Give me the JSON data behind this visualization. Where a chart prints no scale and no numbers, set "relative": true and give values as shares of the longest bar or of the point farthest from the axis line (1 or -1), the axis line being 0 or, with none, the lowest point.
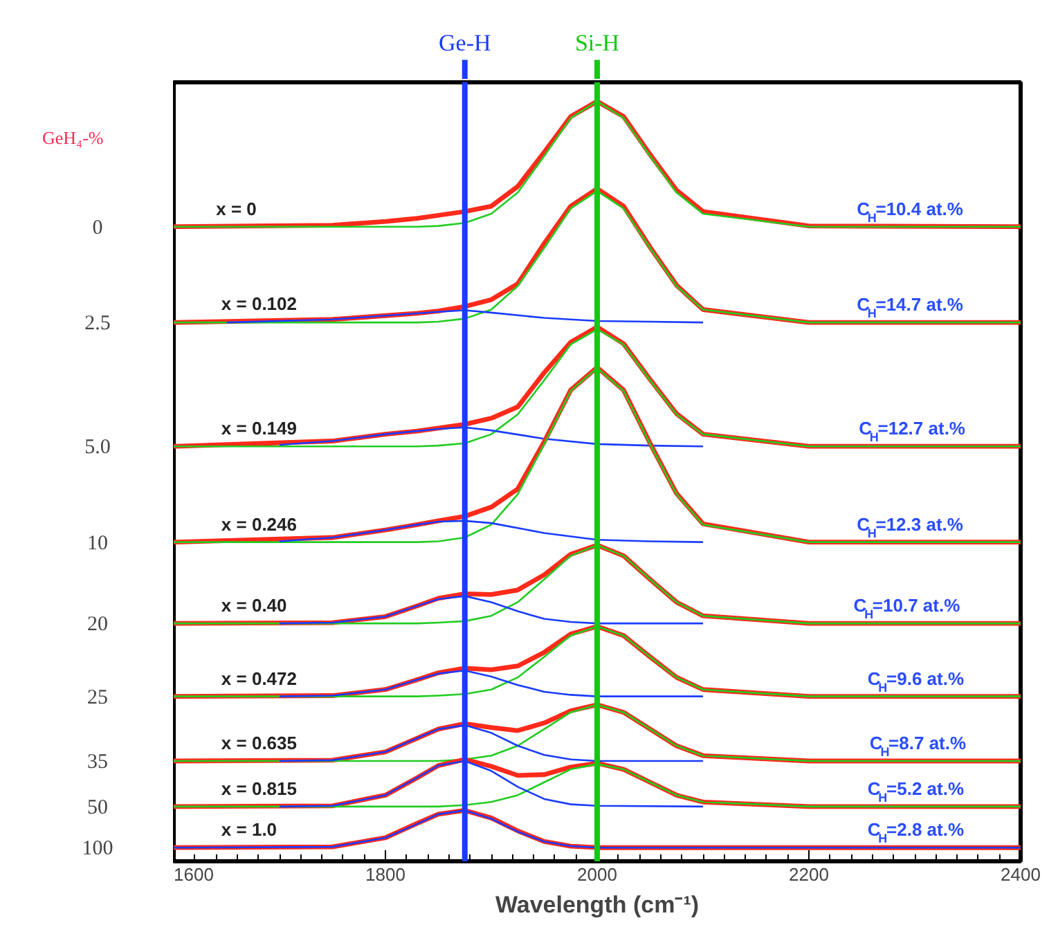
{
  "chart_data": {
    "type": "line",
    "relative": true,
    "xlabel": "Wavelength (cm⁻¹)",
    "ylabel": "GeH₄-%",
    "xlim": [
      1600,
      2400
    ],
    "xticks": [
      1600,
      1800,
      2000,
      2200,
      2400
    ],
    "grid": false,
    "tick_labels": "x",
    "marker": "none",
    "line_style": "solid",
    "x": [
      1600,
      1750,
      1800,
      1830,
      1850,
      1875,
      1900,
      1925,
      1950,
      1975,
      2000,
      2025,
      2050,
      2075,
      2100,
      2200,
      2400
    ],
    "series": [
      {
        "color": "#ff2a1a",
        "values": [
          0.835,
          0.837,
          0.842,
          0.846,
          0.85,
          0.855,
          0.862,
          0.888,
          0.933,
          0.98,
          1.0,
          0.98,
          0.93,
          0.883,
          0.855,
          0.836,
          0.835
        ]
      },
      {
        "color": "#22cc22",
        "values": [
          0.835,
          0.835,
          0.835,
          0.835,
          0.836,
          0.84,
          0.852,
          0.88,
          0.928,
          0.978,
          1.0,
          0.978,
          0.928,
          0.88,
          0.852,
          0.835,
          0.835
        ]
      },
      {
        "color": "#ff2a1a",
        "values": [
          0.709,
          0.713,
          0.718,
          0.721,
          0.724,
          0.73,
          0.739,
          0.76,
          0.813,
          0.862,
          0.885,
          0.862,
          0.808,
          0.758,
          0.726,
          0.709,
          0.709
        ]
      },
      {
        "color": "#22cc22",
        "values": [
          0.709,
          0.709,
          0.709,
          0.709,
          0.71,
          0.714,
          0.726,
          0.757,
          0.807,
          0.859,
          0.882,
          0.859,
          0.807,
          0.757,
          0.726,
          0.709,
          0.709
        ]
      },
      {
        "color": "#1a3cff",
        "x": [
          1650,
          1750,
          1800,
          1850,
          1875,
          1900,
          1950,
          2000,
          2050,
          2100
        ],
        "values": [
          0.709,
          0.713,
          0.718,
          0.723,
          0.725,
          0.722,
          0.715,
          0.711,
          0.71,
          0.709
        ]
      },
      {
        "color": "#ff2a1a",
        "values": [
          0.546,
          0.553,
          0.562,
          0.566,
          0.57,
          0.575,
          0.583,
          0.598,
          0.643,
          0.683,
          0.703,
          0.681,
          0.634,
          0.589,
          0.562,
          0.546,
          0.546
        ]
      },
      {
        "color": "#22cc22",
        "values": [
          0.546,
          0.546,
          0.546,
          0.546,
          0.547,
          0.55,
          0.562,
          0.588,
          0.633,
          0.68,
          0.7,
          0.68,
          0.633,
          0.588,
          0.562,
          0.546,
          0.546
        ]
      },
      {
        "color": "#1a3cff",
        "x": [
          1700,
          1750,
          1800,
          1850,
          1875,
          1900,
          1950,
          2000,
          2050,
          2100
        ],
        "values": [
          0.548,
          0.553,
          0.562,
          0.569,
          0.571,
          0.567,
          0.556,
          0.549,
          0.547,
          0.546
        ]
      },
      {
        "color": "#ff2a1a",
        "values": [
          0.42,
          0.426,
          0.436,
          0.443,
          0.448,
          0.454,
          0.466,
          0.49,
          0.552,
          0.62,
          0.65,
          0.62,
          0.55,
          0.484,
          0.444,
          0.42,
          0.42
        ]
      },
      {
        "color": "#22cc22",
        "values": [
          0.42,
          0.42,
          0.42,
          0.42,
          0.421,
          0.426,
          0.443,
          0.483,
          0.549,
          0.619,
          0.649,
          0.619,
          0.549,
          0.483,
          0.443,
          0.42,
          0.42
        ]
      },
      {
        "color": "#1a3cff",
        "x": [
          1700,
          1750,
          1800,
          1830,
          1850,
          1875,
          1900,
          1950,
          2000,
          2050,
          2100
        ],
        "values": [
          0.421,
          0.426,
          0.436,
          0.443,
          0.447,
          0.448,
          0.445,
          0.432,
          0.423,
          0.421,
          0.42
        ]
      },
      {
        "color": "#ff2a1a",
        "values": [
          0.313,
          0.314,
          0.322,
          0.336,
          0.346,
          0.352,
          0.351,
          0.357,
          0.377,
          0.404,
          0.416,
          0.402,
          0.371,
          0.341,
          0.323,
          0.313,
          0.313
        ]
      },
      {
        "color": "#22cc22",
        "values": [
          0.313,
          0.313,
          0.313,
          0.313,
          0.314,
          0.316,
          0.323,
          0.341,
          0.371,
          0.402,
          0.416,
          0.402,
          0.371,
          0.341,
          0.323,
          0.313,
          0.313
        ]
      },
      {
        "color": "#1a3cff",
        "x": [
          1700,
          1750,
          1800,
          1830,
          1850,
          1875,
          1900,
          1925,
          1950,
          1975,
          2000,
          2100
        ],
        "values": [
          0.313,
          0.314,
          0.322,
          0.336,
          0.345,
          0.349,
          0.341,
          0.329,
          0.319,
          0.315,
          0.313,
          0.313
        ]
      },
      {
        "color": "#ff2a1a",
        "values": [
          0.217,
          0.218,
          0.226,
          0.239,
          0.248,
          0.254,
          0.252,
          0.257,
          0.275,
          0.299,
          0.309,
          0.297,
          0.269,
          0.242,
          0.226,
          0.217,
          0.217
        ]
      },
      {
        "color": "#22cc22",
        "values": [
          0.217,
          0.217,
          0.217,
          0.217,
          0.218,
          0.22,
          0.226,
          0.242,
          0.269,
          0.297,
          0.309,
          0.297,
          0.269,
          0.242,
          0.226,
          0.217,
          0.217
        ]
      },
      {
        "color": "#1a3cff",
        "x": [
          1700,
          1750,
          1800,
          1830,
          1850,
          1875,
          1900,
          1925,
          1950,
          1975,
          2000,
          2100
        ],
        "values": [
          0.217,
          0.218,
          0.226,
          0.239,
          0.247,
          0.251,
          0.243,
          0.232,
          0.223,
          0.219,
          0.217,
          0.217
        ]
      },
      {
        "color": "#ff2a1a",
        "values": [
          0.132,
          0.133,
          0.144,
          0.162,
          0.174,
          0.181,
          0.176,
          0.172,
          0.182,
          0.198,
          0.206,
          0.196,
          0.174,
          0.152,
          0.139,
          0.132,
          0.132
        ]
      },
      {
        "color": "#22cc22",
        "values": [
          0.132,
          0.132,
          0.132,
          0.132,
          0.132,
          0.134,
          0.139,
          0.152,
          0.174,
          0.196,
          0.206,
          0.196,
          0.174,
          0.152,
          0.139,
          0.132,
          0.132
        ]
      },
      {
        "color": "#1a3cff",
        "x": [
          1700,
          1750,
          1800,
          1830,
          1850,
          1875,
          1900,
          1925,
          1950,
          1975,
          2000,
          2100
        ],
        "values": [
          0.132,
          0.133,
          0.144,
          0.162,
          0.174,
          0.179,
          0.169,
          0.152,
          0.14,
          0.134,
          0.132,
          0.132
        ]
      },
      {
        "color": "#ff2a1a",
        "values": [
          0.072,
          0.073,
          0.087,
          0.11,
          0.126,
          0.134,
          0.125,
          0.113,
          0.114,
          0.124,
          0.129,
          0.121,
          0.104,
          0.087,
          0.078,
          0.072,
          0.072
        ]
      },
      {
        "color": "#22cc22",
        "values": [
          0.072,
          0.072,
          0.072,
          0.072,
          0.072,
          0.074,
          0.078,
          0.087,
          0.104,
          0.121,
          0.128,
          0.121,
          0.104,
          0.087,
          0.078,
          0.072,
          0.072
        ]
      },
      {
        "color": "#1a3cff",
        "x": [
          1700,
          1750,
          1800,
          1830,
          1850,
          1875,
          1900,
          1925,
          1950,
          1975,
          2000,
          2100
        ],
        "values": [
          0.072,
          0.073,
          0.087,
          0.11,
          0.126,
          0.132,
          0.119,
          0.098,
          0.082,
          0.075,
          0.073,
          0.072
        ]
      },
      {
        "color": "#ff2a1a",
        "values": [
          0.018,
          0.019,
          0.031,
          0.05,
          0.062,
          0.067,
          0.057,
          0.04,
          0.026,
          0.02,
          0.018,
          0.018,
          0.018,
          0.018,
          0.018,
          0.018,
          0.018
        ]
      },
      {
        "color": "#1a3cff",
        "values": [
          0.018,
          0.019,
          0.031,
          0.049,
          0.062,
          0.067,
          0.056,
          0.039,
          0.026,
          0.02,
          0.018,
          0.018,
          0.018,
          0.018,
          0.018,
          0.018,
          0.018
        ]
      }
    ],
    "ref_lines": [
      {
        "axis": "x",
        "value": 1875,
        "label": "Ge-H",
        "color": "#1a3cff"
      },
      {
        "axis": "x",
        "value": 2000,
        "label": "Si-H",
        "color": "#14c814"
      }
    ],
    "annotations": [
      "0",
      "2.5",
      "5.0",
      "10",
      "20",
      "25",
      "35",
      "50",
      "100",
      {
        "text": "x = 0",
        "x": 1640,
        "y": 0.845
      },
      {
        "text": "x = 0.102",
        "x": 1645,
        "y": 0.72
      },
      {
        "text": "x = 0.149",
        "x": 1645,
        "y": 0.556
      },
      {
        "text": "x = 0.246",
        "x": 1645,
        "y": 0.43
      },
      {
        "text": "x = 0.40",
        "x": 1645,
        "y": 0.323
      },
      {
        "text": "x = 0.472",
        "x": 1645,
        "y": 0.227
      },
      {
        "text": "x = 0.635",
        "x": 1645,
        "y": 0.142
      },
      {
        "text": "x = 0.815",
        "x": 1645,
        "y": 0.082
      },
      {
        "text": "x = 1.0",
        "x": 1645,
        "y": 0.028
      },
      {
        "text": "C$_{H}$=10.4 at.%",
        "x": 2365,
        "y": 0.845
      },
      {
        "text": "C$_{H}$=14.7 at.%",
        "x": 2365,
        "y": 0.719
      },
      {
        "text": "C$_{H}$=12.7 at.%",
        "x": 2367,
        "y": 0.556
      },
      {
        "text": "C$_{H}$=12.3 at.%",
        "x": 2365,
        "y": 0.43
      },
      {
        "text": "C$_{H}$=10.7 at.%",
        "x": 2362,
        "y": 0.323
      },
      {
        "text": "C$_{H}$=9.6 at.%",
        "x": 2365,
        "y": 0.227
      },
      {
        "text": "C$_{H}$=8.7 at.%",
        "x": 2367,
        "y": 0.142
      },
      {
        "text": "C$_{H}$=5.2 at.%",
        "x": 2365,
        "y": 0.082
      },
      {
        "text": "C$_{H}$=2.8 at.%",
        "x": 2365,
        "y": 0.028
      }
    ]
  }
}
